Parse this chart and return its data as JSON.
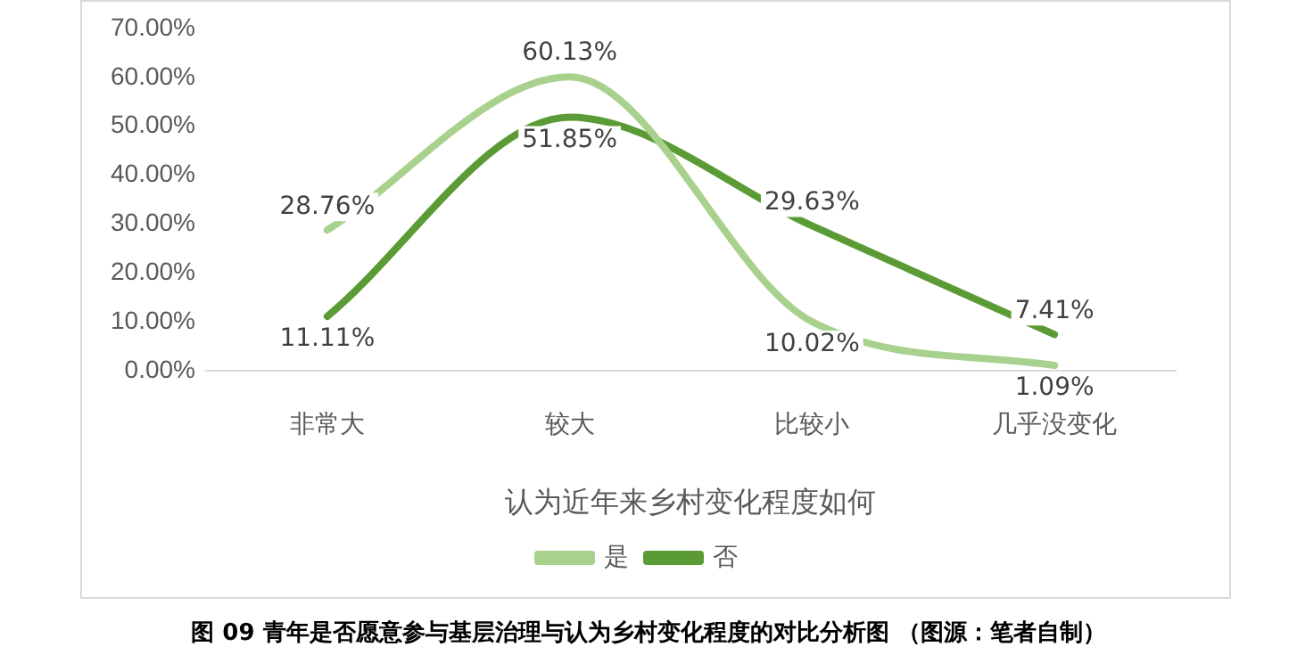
{
  "chart_data": {
    "type": "line",
    "xlabel": "认为近年来乡村变化程度如何",
    "categories": [
      "非常大",
      "较大",
      "比较小",
      "几乎没变化"
    ],
    "series": [
      {
        "name": "是",
        "color": "#a9d18e",
        "values": [
          28.76,
          60.13,
          10.02,
          1.09
        ],
        "value_labels": [
          "28.76%",
          "60.13%",
          "10.02%",
          "1.09%"
        ]
      },
      {
        "name": "否",
        "color": "#5b9b35",
        "values": [
          11.11,
          51.85,
          29.63,
          7.41
        ],
        "value_labels": [
          "11.11%",
          "51.85%",
          "29.63%",
          "7.41%"
        ]
      }
    ],
    "ylim": [
      0,
      70
    ],
    "yticks": [
      {
        "value": 0,
        "label": "0.00%"
      },
      {
        "value": 10,
        "label": "10.00%"
      },
      {
        "value": 20,
        "label": "20.00%"
      },
      {
        "value": 30,
        "label": "30.00%"
      },
      {
        "value": 40,
        "label": "40.00%"
      },
      {
        "value": 50,
        "label": "50.00%"
      },
      {
        "value": 60,
        "label": "60.00%"
      },
      {
        "value": 70,
        "label": "70.00%"
      }
    ],
    "grid": false,
    "legend": "bottom",
    "marker": "none",
    "line_style": "solid",
    "annotations": [
      "图 09 青年是否愿意参与基层治理与认为乡村变化程度的对比分析图 （图源：笔者自制）"
    ]
  }
}
